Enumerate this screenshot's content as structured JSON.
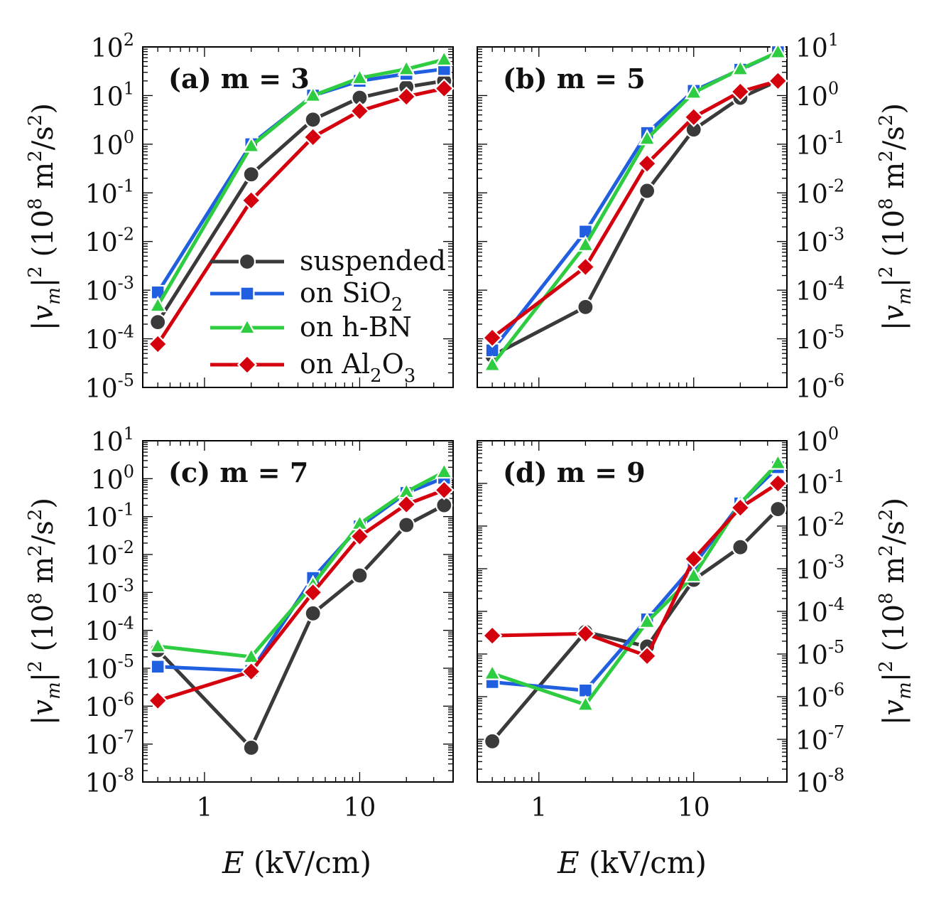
{
  "chart_data": [
    {
      "type": "line",
      "title": "(a) m = 3",
      "xlabel": "E (kV/cm)",
      "ylabel": "|vm|² (10⁸ m²/s²)",
      "xscale": "log",
      "yscale": "log",
      "xlim": [
        0.4,
        40
      ],
      "ylim": [
        1e-05,
        100
      ],
      "yticks": [
        {
          "b": "10",
          "e": "-5"
        },
        {
          "b": "10",
          "e": "-4"
        },
        {
          "b": "10",
          "e": "-3"
        },
        {
          "b": "10",
          "e": "-2"
        },
        {
          "b": "10",
          "e": "-1"
        },
        {
          "b": "10",
          "e": "0"
        },
        {
          "b": "10",
          "e": "1"
        },
        {
          "b": "10",
          "e": "2"
        }
      ],
      "xticks": [],
      "x": [
        0.5,
        2,
        5,
        10,
        20,
        35
      ],
      "series": [
        {
          "name": "suspended",
          "values": [
            0.00022,
            0.24,
            3.2,
            9.0,
            15,
            20
          ]
        },
        {
          "name": "on SiO2",
          "values": [
            0.0009,
            1.0,
            10,
            20,
            28,
            35
          ]
        },
        {
          "name": "on h-BN",
          "values": [
            0.00048,
            0.92,
            10,
            23,
            35,
            55
          ]
        },
        {
          "name": "on Al2O3",
          "values": [
            7.8e-05,
            0.07,
            1.4,
            4.8,
            9.5,
            14
          ]
        }
      ]
    },
    {
      "type": "line",
      "title": "(b) m = 5",
      "xlabel": "E (kV/cm)",
      "ylabel": "|vm|² (10⁸ m²/s²)",
      "xscale": "log",
      "yscale": "log",
      "xlim": [
        0.4,
        40
      ],
      "ylim": [
        1e-06,
        10
      ],
      "yticks": [
        {
          "b": "10",
          "e": "-6"
        },
        {
          "b": "10",
          "e": "-5"
        },
        {
          "b": "10",
          "e": "-4"
        },
        {
          "b": "10",
          "e": "-3"
        },
        {
          "b": "10",
          "e": "-2"
        },
        {
          "b": "10",
          "e": "-1"
        },
        {
          "b": "10",
          "e": "0"
        },
        {
          "b": "10",
          "e": "1"
        }
      ],
      "xticks": [],
      "x": [
        0.5,
        2,
        5,
        10,
        20,
        35
      ],
      "series": [
        {
          "name": "suspended",
          "values": [
            4.5e-06,
            4.5e-05,
            0.011,
            0.2,
            0.9,
            2.0
          ]
        },
        {
          "name": "on SiO2",
          "values": [
            5.8e-06,
            0.0016,
            0.17,
            1.25,
            3.4,
            7.8
          ]
        },
        {
          "name": "on h-BN",
          "values": [
            2.9e-06,
            0.00085,
            0.13,
            1.15,
            3.5,
            7.8
          ]
        },
        {
          "name": "on Al2O3",
          "values": [
            1.05e-05,
            0.0003,
            0.04,
            0.36,
            1.2,
            2.0
          ]
        }
      ]
    },
    {
      "type": "line",
      "title": "(c) m = 7",
      "xlabel": "E (kV/cm)",
      "ylabel": "|vm|² (10⁸ m²/s²)",
      "xscale": "log",
      "yscale": "log",
      "xlim": [
        0.4,
        40
      ],
      "ylim": [
        1e-08,
        10
      ],
      "yticks": [
        {
          "b": "10",
          "e": "-8"
        },
        {
          "b": "10",
          "e": "-7"
        },
        {
          "b": "10",
          "e": "-6"
        },
        {
          "b": "10",
          "e": "-5"
        },
        {
          "b": "10",
          "e": "-4"
        },
        {
          "b": "10",
          "e": "-3"
        },
        {
          "b": "10",
          "e": "-2"
        },
        {
          "b": "10",
          "e": "-1"
        },
        {
          "b": "10",
          "e": "0"
        },
        {
          "b": "10",
          "e": "1"
        }
      ],
      "xticks": [
        "1",
        "10"
      ],
      "x": [
        0.5,
        2,
        5,
        10,
        20,
        35
      ],
      "series": [
        {
          "name": "suspended",
          "values": [
            3e-05,
            8e-08,
            0.00028,
            0.0028,
            0.06,
            0.2
          ]
        },
        {
          "name": "on SiO2",
          "values": [
            1.1e-05,
            8.5e-06,
            0.0024,
            0.055,
            0.42,
            1.05
          ]
        },
        {
          "name": "on h-BN",
          "values": [
            3.8e-05,
            2e-05,
            0.0016,
            0.065,
            0.45,
            1.5
          ]
        },
        {
          "name": "on Al2O3",
          "values": [
            1.4e-06,
            8.2e-06,
            0.001,
            0.03,
            0.21,
            0.5
          ]
        }
      ]
    },
    {
      "type": "line",
      "title": "(d) m = 9",
      "xlabel": "E (kV/cm)",
      "ylabel": "|vm|² (10⁸ m²/s²)",
      "xscale": "log",
      "yscale": "log",
      "xlim": [
        0.4,
        40
      ],
      "ylim": [
        1e-08,
        1
      ],
      "yticks": [
        {
          "b": "10",
          "e": "-8"
        },
        {
          "b": "10",
          "e": "-7"
        },
        {
          "b": "10",
          "e": "-6"
        },
        {
          "b": "10",
          "e": "-5"
        },
        {
          "b": "10",
          "e": "-4"
        },
        {
          "b": "10",
          "e": "-3"
        },
        {
          "b": "10",
          "e": "-2"
        },
        {
          "b": "10",
          "e": "-1"
        },
        {
          "b": "10",
          "e": "0"
        }
      ],
      "xticks": [
        "1",
        "10"
      ],
      "x": [
        0.5,
        2,
        5,
        10,
        20,
        35
      ],
      "series": [
        {
          "name": "suspended",
          "values": [
            9e-08,
            3.3e-05,
            1.5e-05,
            0.00055,
            0.0032,
            0.025
          ]
        },
        {
          "name": "on SiO2",
          "values": [
            2.2e-06,
            1.4e-06,
            6.5e-05,
            0.0012,
            0.034,
            0.24
          ]
        },
        {
          "name": "on h-BN",
          "values": [
            3.5e-06,
            6.5e-07,
            5.7e-05,
            0.00068,
            0.034,
            0.3
          ]
        },
        {
          "name": "on Al2O3",
          "values": [
            2.7e-05,
            3e-05,
            9e-06,
            0.0017,
            0.027,
            0.1
          ]
        }
      ]
    }
  ],
  "legend": {
    "items": [
      {
        "name": "suspended",
        "label": "suspended"
      },
      {
        "name": "on SiO2",
        "label_main": "on SiO",
        "label_sub": "2"
      },
      {
        "name": "on h-BN",
        "label": "on h-BN"
      },
      {
        "name": "on Al2O3",
        "label_a": "on Al",
        "sub_a": "2",
        "label_b": "O",
        "sub_b": "3"
      }
    ]
  },
  "axis_titles": {
    "x_italic": "E",
    "x_rest": " (kV/cm)",
    "y_open": "|",
    "y_v": "v",
    "y_m": "m",
    "y_close": "|",
    "y_sq": "2",
    "y_mid": " (10",
    "y_e8": "8",
    "y_unit": " m",
    "y_m2": "2",
    "y_per": "/s",
    "y_s2": "2",
    "y_end": ")"
  },
  "styles": {
    "suspended": {
      "color": "#3a3a3a",
      "marker": "circle"
    },
    "on SiO2": {
      "color": "#1f5fe0",
      "marker": "square"
    },
    "on h-BN": {
      "color": "#2ecc40",
      "marker": "triangle"
    },
    "on Al2O3": {
      "color": "#d4000d",
      "marker": "diamond"
    }
  }
}
